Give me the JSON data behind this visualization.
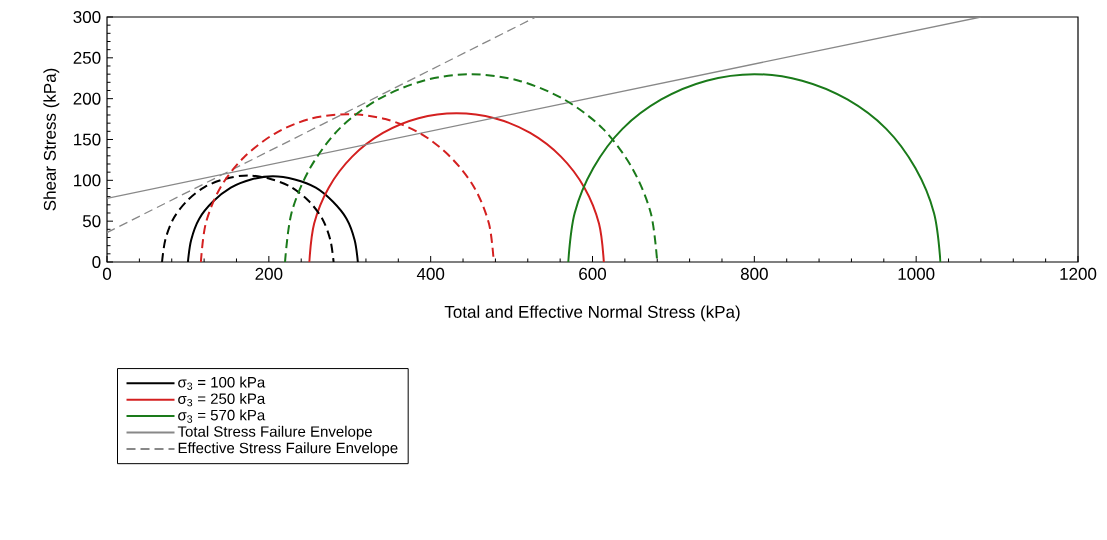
{
  "chart_data": {
    "type": "line",
    "xlabel": "Total and Effective Normal Stress (kPa)",
    "ylabel": "Shear Stress (kPa)",
    "xlim": [
      0,
      1200
    ],
    "xticks": [
      0,
      200,
      400,
      600,
      800,
      1000,
      1200
    ],
    "ylim": [
      0,
      300
    ],
    "yticks": [
      0,
      50,
      100,
      150,
      200,
      250,
      300
    ],
    "grid": false,
    "legend": "bottom left",
    "marker": "none",
    "series": [
      {
        "name": "σ$_{3}$ = 100 kPa",
        "color": "#000000",
        "line_style": "solid",
        "x": [
          100,
          104,
          114,
          131,
          153,
          178,
          205,
          232,
          258,
          279,
          296,
          306,
          310
        ],
        "values": [
          0,
          27,
          53,
          74,
          91,
          101,
          105,
          101,
          91,
          74,
          53,
          27,
          0
        ]
      },
      {
        "name": "σ$_{3}$ = 250 kPa",
        "color": "#d42020",
        "line_style": "solid",
        "x": [
          250,
          256,
          274,
          303,
          341,
          385,
          432,
          479,
          523,
          561,
          590,
          608,
          614
        ],
        "values": [
          0,
          47,
          91,
          129,
          158,
          176,
          182,
          176,
          158,
          129,
          91,
          47,
          0
        ]
      },
      {
        "name": "σ$_{3}$ = 570 kPa",
        "color": "#1a7a1a",
        "line_style": "solid",
        "x": [
          570,
          578,
          601,
          637,
          685,
          741,
          800,
          859,
          915,
          963,
          999,
          1022,
          1030
        ],
        "values": [
          0,
          60,
          115,
          163,
          199,
          222,
          230,
          222,
          199,
          163,
          115,
          60,
          0
        ]
      },
      {
        "name": "Total Stress Failure Envelope",
        "color": "#888888",
        "line_style": "solid",
        "x": [
          0,
          1080
        ],
        "values": [
          78,
          300
        ]
      },
      {
        "name": "Effective Stress Failure Envelope",
        "color": "#888888",
        "line_style": "dashed",
        "x": [
          0,
          530
        ],
        "values": [
          36,
          300
        ]
      },
      {
        "color": "#000000",
        "line_style": "dashed",
        "x": [
          68,
          72,
          82,
          99,
          121,
          147,
          174,
          201,
          227,
          249,
          266,
          276,
          280
        ],
        "values": [
          0,
          27,
          53,
          75,
          92,
          102,
          106,
          102,
          92,
          75,
          53,
          27,
          0
        ]
      },
      {
        "color": "#d42020",
        "line_style": "dashed",
        "x": [
          116,
          122,
          140,
          169,
          207,
          250,
          297,
          344,
          388,
          425,
          454,
          472,
          478
        ],
        "values": [
          0,
          47,
          91,
          128,
          157,
          175,
          181,
          175,
          157,
          128,
          91,
          47,
          0
        ]
      },
      {
        "color": "#1a7a1a",
        "line_style": "dashed",
        "x": [
          220,
          228,
          251,
          287,
          335,
          391,
          450,
          509,
          565,
          613,
          649,
          672,
          680
        ],
        "values": [
          0,
          60,
          115,
          163,
          199,
          222,
          230,
          222,
          199,
          163,
          115,
          60,
          0
        ]
      }
    ]
  }
}
